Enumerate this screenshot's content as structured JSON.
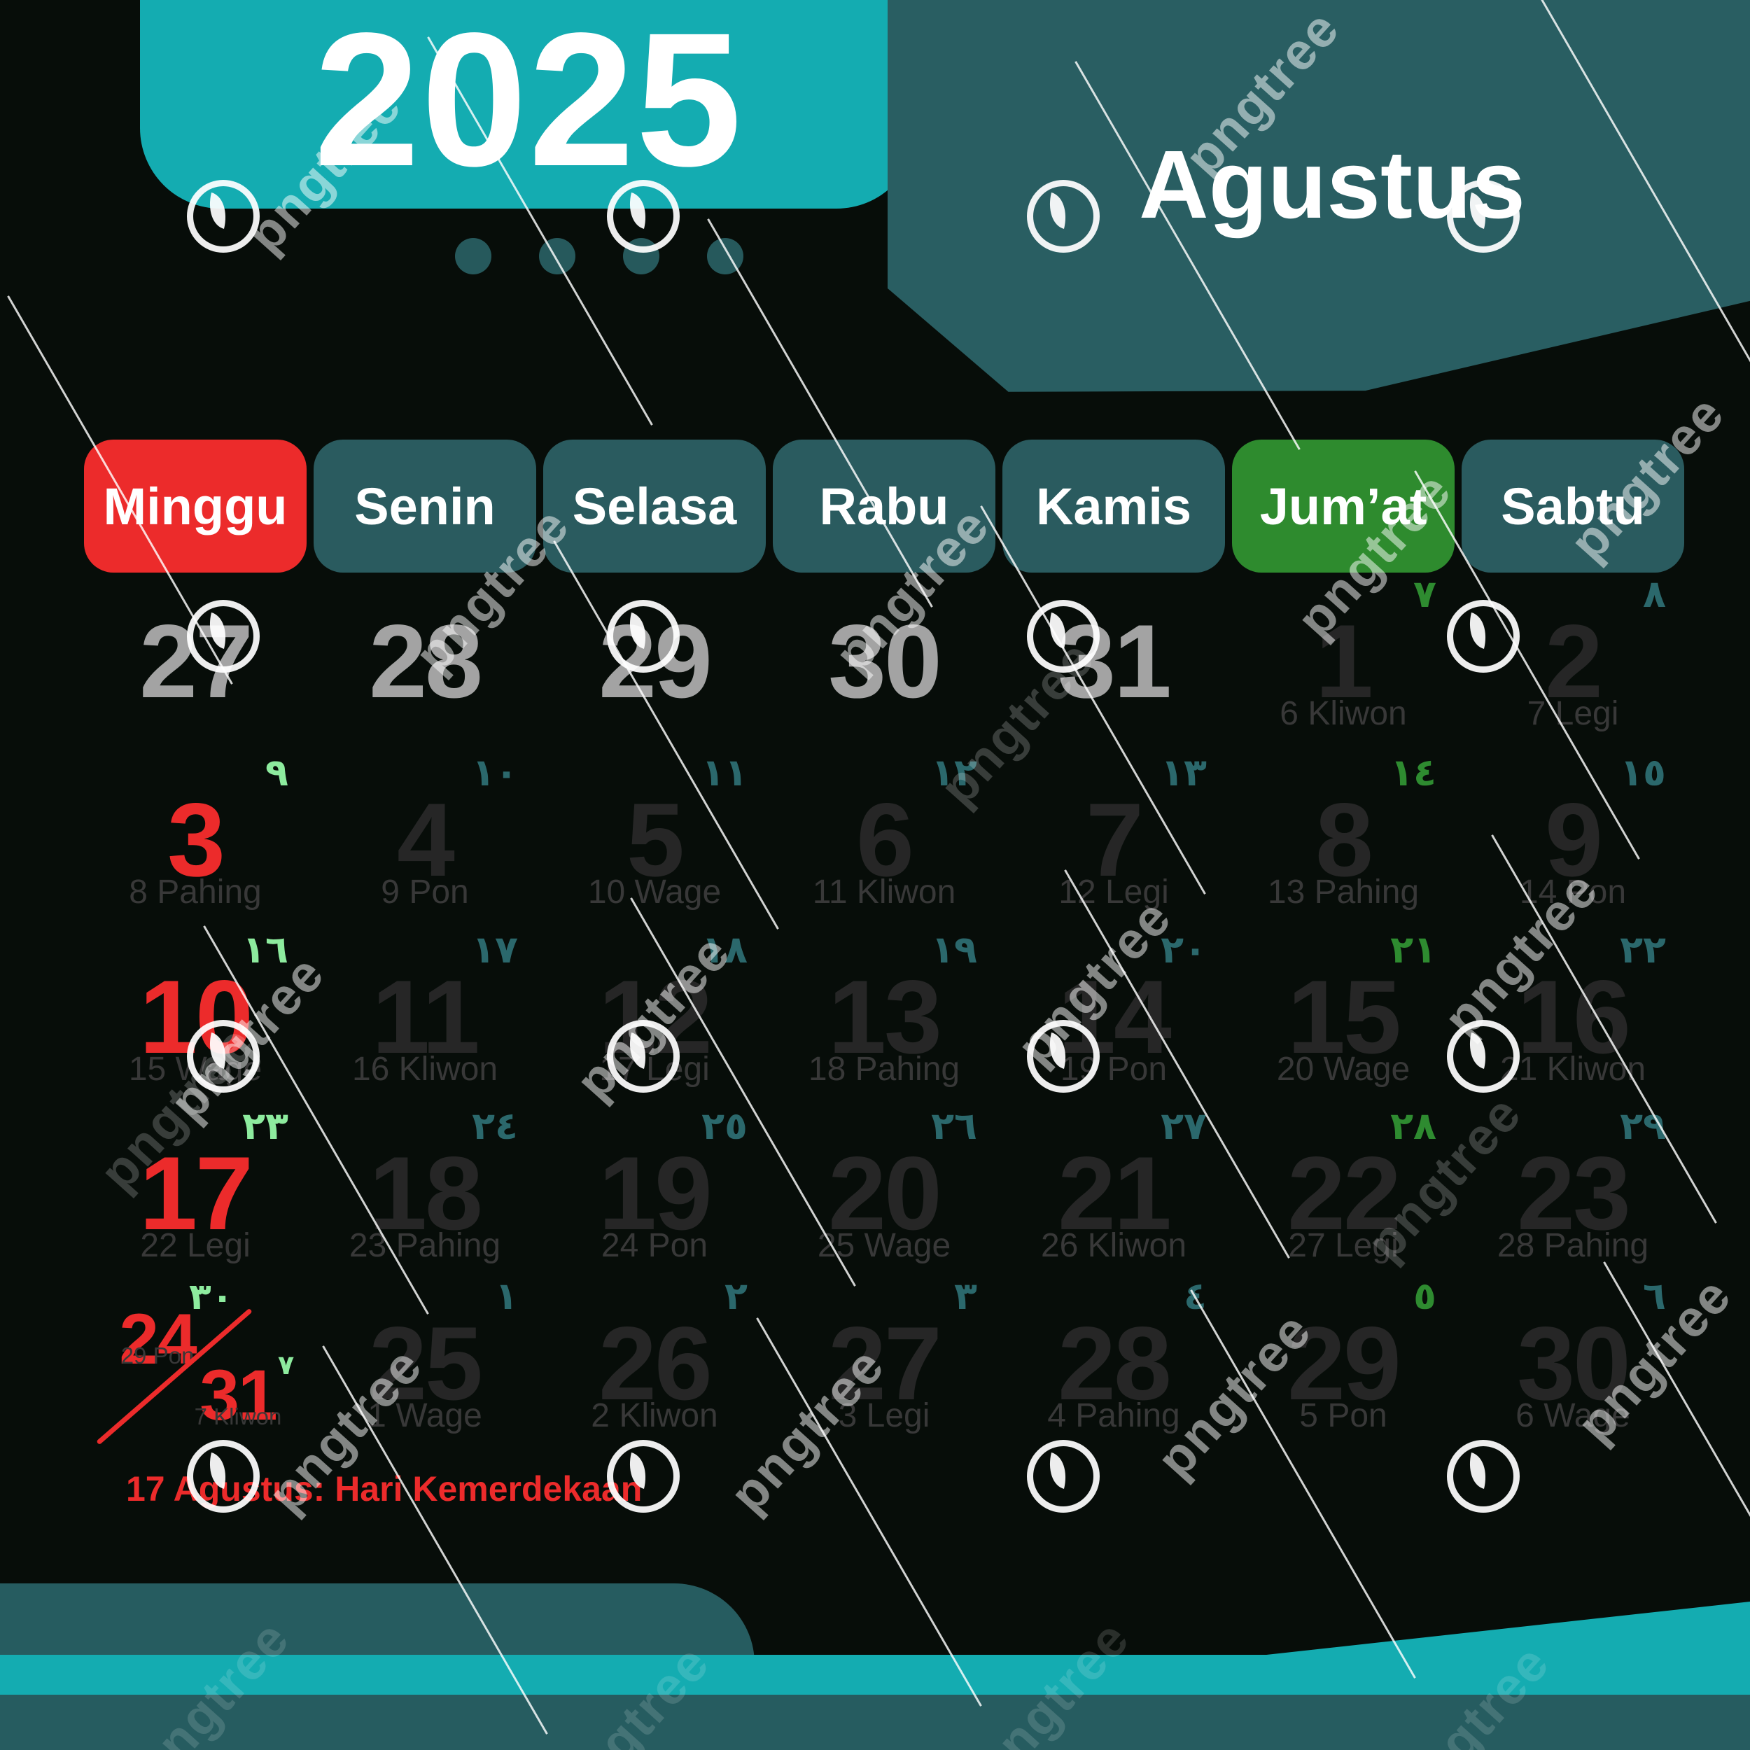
{
  "calendar": {
    "year": "2025",
    "month": "Agustus",
    "note": "17 Agustus: Hari Kemerdekaan",
    "weekday_headers": [
      {
        "label": "Minggu",
        "type": "sunday"
      },
      {
        "label": "Senin",
        "type": "normal"
      },
      {
        "label": "Selasa",
        "type": "normal"
      },
      {
        "label": "Rabu",
        "type": "normal"
      },
      {
        "label": "Kamis",
        "type": "normal"
      },
      {
        "label": "Jum’at",
        "type": "friday"
      },
      {
        "label": "Sabtu",
        "type": "normal"
      }
    ],
    "weeks": [
      [
        {
          "day": "27",
          "type": "prev"
        },
        {
          "day": "28",
          "type": "prev"
        },
        {
          "day": "29",
          "type": "prev"
        },
        {
          "day": "30",
          "type": "prev"
        },
        {
          "day": "31",
          "type": "prev"
        },
        {
          "day": "1",
          "type": "cur",
          "label": "6 Kliwon",
          "hijri": "٧",
          "hijri_style": "friday"
        },
        {
          "day": "2",
          "type": "cur",
          "label": "7 Legi",
          "hijri": "٨",
          "hijri_style": "normal"
        }
      ],
      [
        {
          "day": "3",
          "type": "sun",
          "label": "8 Pahing",
          "hijri": "٩",
          "hijri_style": "sunday"
        },
        {
          "day": "4",
          "type": "cur",
          "label": "9 Pon",
          "hijri": "١٠",
          "hijri_style": "normal"
        },
        {
          "day": "5",
          "type": "cur",
          "label": "10 Wage",
          "hijri": "١١",
          "hijri_style": "normal"
        },
        {
          "day": "6",
          "type": "cur",
          "label": "11 Kliwon",
          "hijri": "١٢",
          "hijri_style": "normal"
        },
        {
          "day": "7",
          "type": "cur",
          "label": "12 Legi",
          "hijri": "١٣",
          "hijri_style": "normal"
        },
        {
          "day": "8",
          "type": "cur",
          "label": "13 Pahing",
          "hijri": "١٤",
          "hijri_style": "friday"
        },
        {
          "day": "9",
          "type": "cur",
          "label": "14 Pon",
          "hijri": "١٥",
          "hijri_style": "normal"
        }
      ],
      [
        {
          "day": "10",
          "type": "sun",
          "label": "15 Wage",
          "hijri": "١٦",
          "hijri_style": "sunday"
        },
        {
          "day": "11",
          "type": "cur",
          "label": "16 Kliwon",
          "hijri": "١٧",
          "hijri_style": "normal"
        },
        {
          "day": "12",
          "type": "cur",
          "label": "17 Legi",
          "hijri": "١٨",
          "hijri_style": "normal"
        },
        {
          "day": "13",
          "type": "cur",
          "label": "18 Pahing",
          "hijri": "١٩",
          "hijri_style": "normal"
        },
        {
          "day": "14",
          "type": "cur",
          "label": "19 Pon",
          "hijri": "٢٠",
          "hijri_style": "normal"
        },
        {
          "day": "15",
          "type": "cur",
          "label": "20 Wage",
          "hijri": "٢١",
          "hijri_style": "friday"
        },
        {
          "day": "16",
          "type": "cur",
          "label": "21 Kliwon",
          "hijri": "٢٢",
          "hijri_style": "normal"
        }
      ],
      [
        {
          "day": "17",
          "type": "sun",
          "label": "22 Legi",
          "hijri": "٢٣",
          "hijri_style": "sunday"
        },
        {
          "day": "18",
          "type": "cur",
          "label": "23 Pahing",
          "hijri": "٢٤",
          "hijri_style": "normal"
        },
        {
          "day": "19",
          "type": "cur",
          "label": "24 Pon",
          "hijri": "٢٥",
          "hijri_style": "normal"
        },
        {
          "day": "20",
          "type": "cur",
          "label": "25 Wage",
          "hijri": "٢٦",
          "hijri_style": "normal"
        },
        {
          "day": "21",
          "type": "cur",
          "label": "26 Kliwon",
          "hijri": "٢٧",
          "hijri_style": "normal"
        },
        {
          "day": "22",
          "type": "cur",
          "label": "27 Legi",
          "hijri": "٢٨",
          "hijri_style": "friday"
        },
        {
          "day": "23",
          "type": "cur",
          "label": "28 Pahing",
          "hijri": "٢٩",
          "hijri_style": "normal"
        }
      ],
      [
        {
          "combo": true,
          "day": "24",
          "label": "29 Pon",
          "hijri": "٣٠",
          "hijri_style": "sunday",
          "day2": "31",
          "label2": "7 Kliwon",
          "hijri2": "٧",
          "hijri2_style": "sunday"
        },
        {
          "day": "25",
          "type": "cur",
          "label": "1 Wage",
          "hijri": "١",
          "hijri_style": "normal"
        },
        {
          "day": "26",
          "type": "cur",
          "label": "2 Kliwon",
          "hijri": "٢",
          "hijri_style": "normal"
        },
        {
          "day": "27",
          "type": "cur",
          "label": "3 Legi",
          "hijri": "٣",
          "hijri_style": "normal"
        },
        {
          "day": "28",
          "type": "cur",
          "label": "4 Pahing",
          "hijri": "٤",
          "hijri_style": "normal"
        },
        {
          "day": "29",
          "type": "cur",
          "label": "5 Pon",
          "hijri": "٥",
          "hijri_style": "friday"
        },
        {
          "day": "30",
          "type": "cur",
          "label": "6 Wage",
          "hijri": "٦",
          "hijri_style": "normal"
        }
      ]
    ]
  },
  "colors": {
    "background": "#070d09",
    "accent_teal": "#14acb1",
    "dark_teal": "#295e62",
    "sunday_red": "#ec2b2b",
    "friday_green": "#2e8b2e",
    "hijri_teal": "#2b686c",
    "hijri_light_green": "#8deb9e",
    "prev_month_gray": "#a3a3a3",
    "date_dark": "#262626"
  },
  "watermark": {
    "brand": "pngtree",
    "logo_icon": "leaf-circle-icon"
  }
}
